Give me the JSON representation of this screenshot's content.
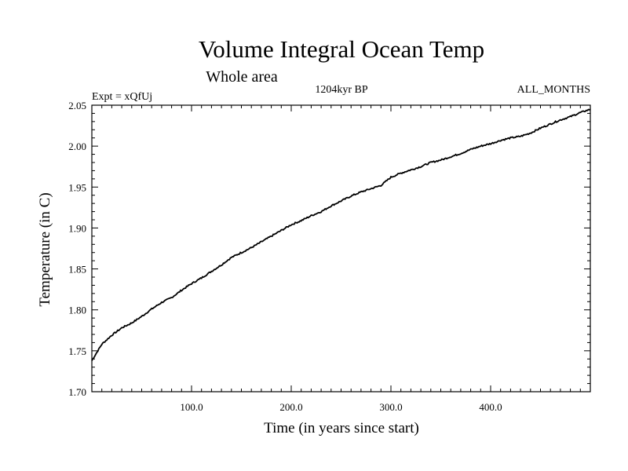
{
  "chart_data": {
    "type": "line",
    "title": "Volume Integral Ocean Temp",
    "subtitle": "Whole area",
    "left_label": "Expt = xQfUj",
    "center_label": "1204kyr BP",
    "right_label": "ALL_MONTHS",
    "xlabel": "Time (in years since start)",
    "ylabel": "Temperature (in C)",
    "xlim": [
      0,
      500
    ],
    "ylim": [
      1.7,
      2.05
    ],
    "xticks": [
      100,
      200,
      300,
      400
    ],
    "xtick_labels": [
      "100.0",
      "200.0",
      "300.0",
      "400.0"
    ],
    "yticks": [
      1.7,
      1.75,
      1.8,
      1.85,
      1.9,
      1.95,
      2.0,
      2.05
    ],
    "ytick_labels": [
      "1.70",
      "1.75",
      "1.80",
      "1.85",
      "1.90",
      "1.95",
      "2.00",
      "2.05"
    ],
    "grid": false,
    "line_color": "#000000",
    "series": [
      {
        "name": "Volume Integral Ocean Temp",
        "x": [
          0,
          10,
          20,
          30,
          40,
          50,
          60,
          70,
          80,
          90,
          100,
          110,
          120,
          130,
          140,
          150,
          160,
          170,
          180,
          190,
          200,
          210,
          220,
          230,
          240,
          250,
          260,
          270,
          280,
          290,
          300,
          310,
          320,
          330,
          340,
          350,
          360,
          370,
          380,
          390,
          400,
          410,
          420,
          430,
          440,
          450,
          460,
          470,
          480,
          490,
          500
        ],
        "values": [
          1.738,
          1.758,
          1.769,
          1.778,
          1.784,
          1.792,
          1.801,
          1.809,
          1.815,
          1.824,
          1.832,
          1.839,
          1.847,
          1.855,
          1.864,
          1.87,
          1.876,
          1.883,
          1.89,
          1.897,
          1.904,
          1.909,
          1.915,
          1.92,
          1.927,
          1.933,
          1.939,
          1.944,
          1.948,
          1.952,
          1.962,
          1.967,
          1.971,
          1.975,
          1.98,
          1.983,
          1.987,
          1.991,
          1.996,
          2.0,
          2.003,
          2.007,
          2.01,
          2.012,
          2.016,
          2.022,
          2.027,
          2.032,
          2.036,
          2.041,
          2.045
        ]
      }
    ]
  }
}
